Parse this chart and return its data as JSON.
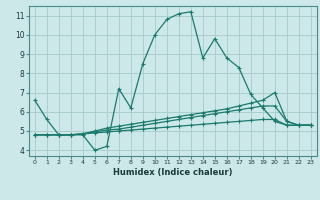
{
  "background_color": "#cde8e8",
  "grid_color": "#aacece",
  "line_color": "#1a7a6e",
  "xlim": [
    -0.5,
    23.5
  ],
  "ylim": [
    3.7,
    11.5
  ],
  "xlabel": "Humidex (Indice chaleur)",
  "xticks": [
    0,
    1,
    2,
    3,
    4,
    5,
    6,
    7,
    8,
    9,
    10,
    11,
    12,
    13,
    14,
    15,
    16,
    17,
    18,
    19,
    20,
    21,
    22,
    23
  ],
  "yticks": [
    4,
    5,
    6,
    7,
    8,
    9,
    10,
    11
  ],
  "series": [
    {
      "x": [
        0,
        1,
        2,
        3,
        4,
        5,
        6,
        7,
        8,
        9,
        10,
        11,
        12,
        13,
        14,
        15,
        16,
        17,
        18,
        19,
        20,
        21,
        22,
        23
      ],
      "y": [
        6.6,
        5.6,
        4.8,
        4.8,
        4.8,
        4.0,
        4.2,
        7.2,
        6.2,
        8.5,
        10.0,
        10.8,
        11.1,
        11.2,
        8.8,
        9.8,
        8.8,
        8.3,
        6.9,
        6.2,
        5.5,
        5.3,
        5.3,
        5.3
      ]
    },
    {
      "x": [
        0,
        1,
        2,
        3,
        4,
        5,
        6,
        7,
        8,
        9,
        10,
        11,
        12,
        13,
        14,
        15,
        16,
        17,
        18,
        19,
        20,
        21,
        22,
        23
      ],
      "y": [
        4.8,
        4.8,
        4.8,
        4.8,
        4.85,
        5.0,
        5.15,
        5.25,
        5.35,
        5.45,
        5.55,
        5.65,
        5.75,
        5.85,
        5.95,
        6.05,
        6.15,
        6.3,
        6.45,
        6.6,
        7.0,
        5.5,
        5.3,
        5.3
      ]
    },
    {
      "x": [
        0,
        1,
        2,
        3,
        4,
        5,
        6,
        7,
        8,
        9,
        10,
        11,
        12,
        13,
        14,
        15,
        16,
        17,
        18,
        19,
        20,
        21,
        22,
        23
      ],
      "y": [
        4.8,
        4.8,
        4.8,
        4.8,
        4.85,
        4.95,
        5.05,
        5.1,
        5.2,
        5.3,
        5.4,
        5.5,
        5.6,
        5.7,
        5.8,
        5.9,
        6.0,
        6.1,
        6.2,
        6.3,
        6.3,
        5.5,
        5.3,
        5.3
      ]
    },
    {
      "x": [
        0,
        1,
        2,
        3,
        4,
        5,
        6,
        7,
        8,
        9,
        10,
        11,
        12,
        13,
        14,
        15,
        16,
        17,
        18,
        19,
        20,
        21,
        22,
        23
      ],
      "y": [
        4.8,
        4.8,
        4.8,
        4.8,
        4.85,
        4.9,
        4.95,
        5.0,
        5.05,
        5.1,
        5.15,
        5.2,
        5.25,
        5.3,
        5.35,
        5.4,
        5.45,
        5.5,
        5.55,
        5.6,
        5.6,
        5.3,
        5.3,
        5.3
      ]
    }
  ]
}
